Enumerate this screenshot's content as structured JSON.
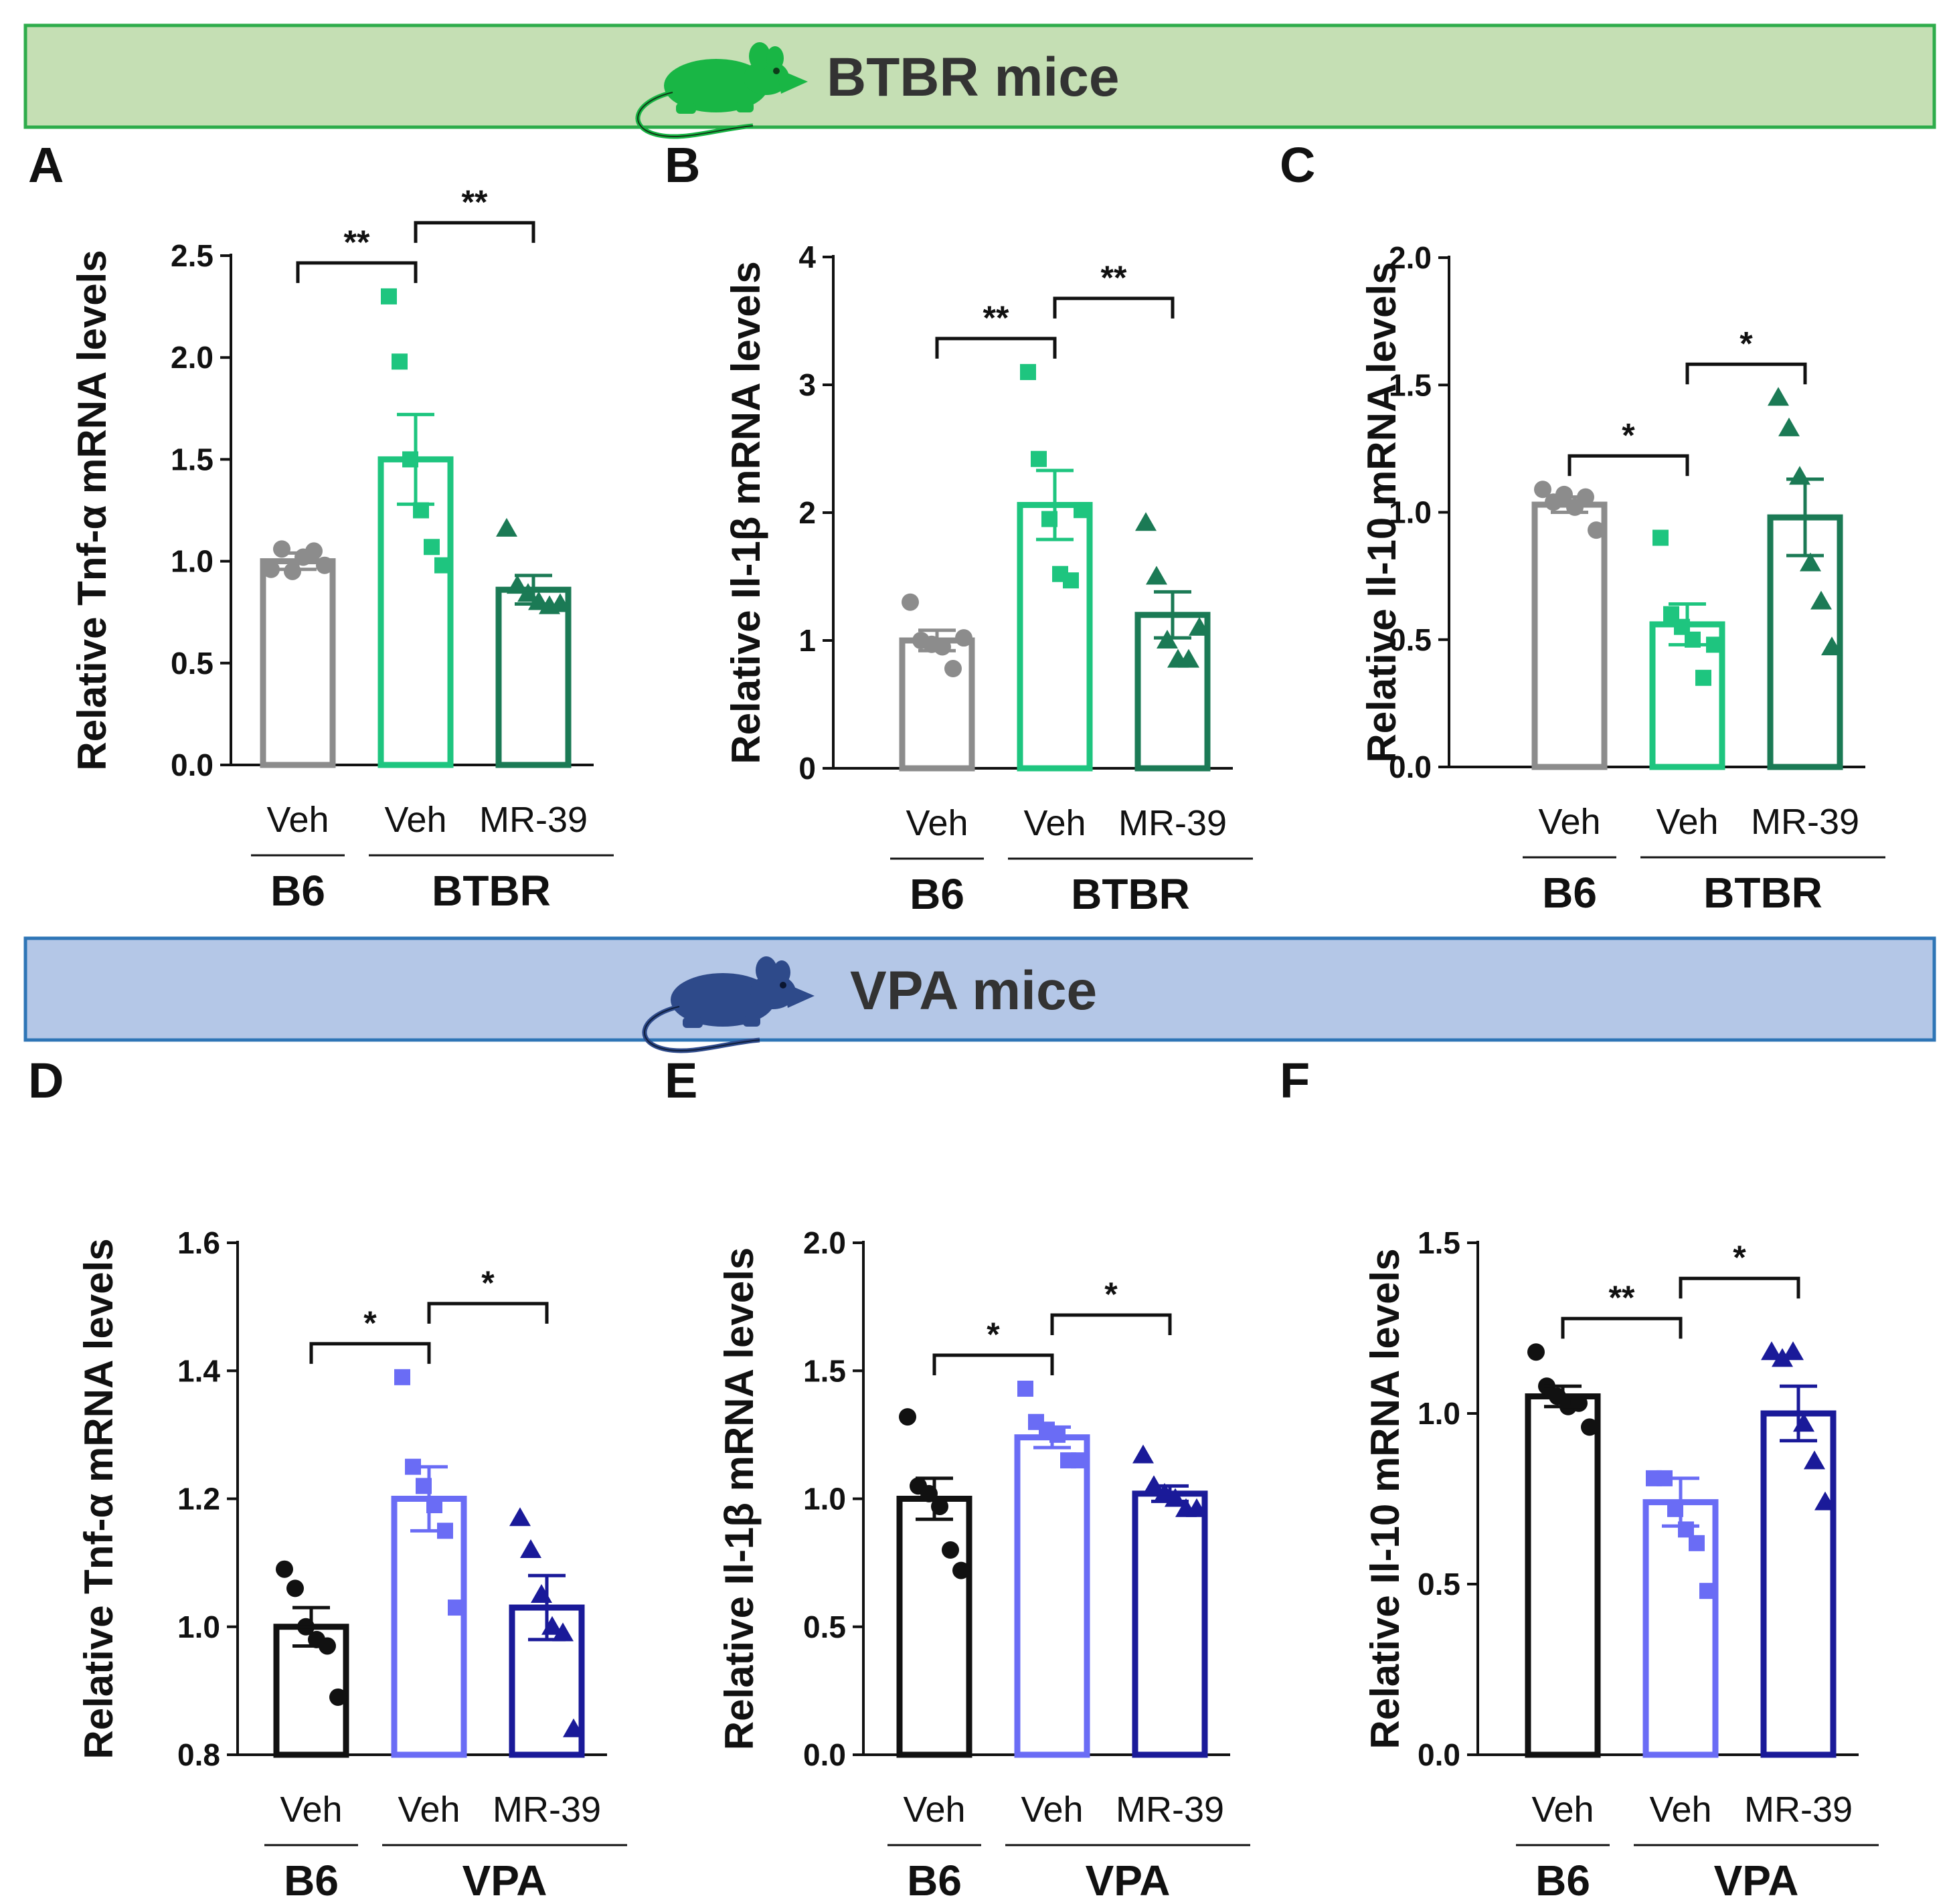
{
  "sections": [
    {
      "title": "BTBR mice",
      "fill": "#c5dfb4",
      "stroke": "#2eac4b",
      "mouse_color": "#19b645",
      "mouse_icon": "mouse-icon"
    },
    {
      "title": "VPA mice",
      "fill": "#b4c7e7",
      "stroke": "#2e75b6",
      "mouse_color": "#2e4a8a",
      "mouse_icon": "mouse-icon"
    }
  ],
  "chart_data": [
    {
      "panel": "A",
      "type": "bar",
      "section": 0,
      "ylabel": "Relative Tnf-α mRNA levels",
      "ylim": [
        0,
        2.5
      ],
      "yticks": [
        "0.0",
        "0.5",
        "1.0",
        "1.5",
        "2.0",
        "2.5"
      ],
      "categories": [
        "Veh",
        "Veh",
        "MR-39"
      ],
      "groups": [
        {
          "label": "B6",
          "bars": [
            0
          ]
        },
        {
          "label": "BTBR",
          "bars": [
            1,
            2
          ]
        }
      ],
      "colors": [
        "#8c8c8c",
        "#1ec57f",
        "#1b7a55"
      ],
      "markers": [
        "circle",
        "square",
        "triangle"
      ],
      "values": [
        1.0,
        1.5,
        0.86
      ],
      "sem": [
        0.04,
        0.22,
        0.07
      ],
      "points": [
        [
          0.96,
          1.06,
          0.95,
          1.02,
          1.05,
          0.98
        ],
        [
          2.3,
          1.98,
          1.5,
          1.25,
          1.07,
          0.98
        ],
        [
          1.16,
          0.88,
          0.84,
          0.8,
          0.78,
          0.79
        ]
      ],
      "comparisons": [
        {
          "from": 0,
          "to": 1,
          "label": "**"
        },
        {
          "from": 1,
          "to": 2,
          "label": "**"
        }
      ]
    },
    {
      "panel": "B",
      "type": "bar",
      "section": 0,
      "ylabel": "Relative Il-1β mRNA levels",
      "ylim": [
        0,
        4
      ],
      "yticks": [
        "0",
        "1",
        "2",
        "3",
        "4"
      ],
      "categories": [
        "Veh",
        "Veh",
        "MR-39"
      ],
      "groups": [
        {
          "label": "B6",
          "bars": [
            0
          ]
        },
        {
          "label": "BTBR",
          "bars": [
            1,
            2
          ]
        }
      ],
      "colors": [
        "#8c8c8c",
        "#1ec57f",
        "#1b7a55"
      ],
      "markers": [
        "circle",
        "square",
        "triangle"
      ],
      "values": [
        1.0,
        2.06,
        1.2
      ],
      "sem": [
        0.08,
        0.27,
        0.18
      ],
      "points": [
        [
          1.3,
          1.0,
          0.97,
          0.95,
          0.78,
          1.02
        ],
        [
          3.1,
          2.42,
          1.95,
          1.52,
          1.47,
          2.02
        ],
        [
          1.92,
          1.5,
          1.0,
          0.85,
          0.85,
          1.1
        ]
      ],
      "comparisons": [
        {
          "from": 0,
          "to": 1,
          "label": "**"
        },
        {
          "from": 1,
          "to": 2,
          "label": "**"
        }
      ]
    },
    {
      "panel": "C",
      "type": "bar",
      "section": 0,
      "ylabel": "Relative Il-10 mRNA levels",
      "ylim": [
        0,
        2.0
      ],
      "yticks": [
        "0.0",
        "0.5",
        "1.0",
        "1.5",
        "2.0"
      ],
      "categories": [
        "Veh",
        "Veh",
        "MR-39"
      ],
      "groups": [
        {
          "label": "B6",
          "bars": [
            0
          ]
        },
        {
          "label": "BTBR",
          "bars": [
            1,
            2
          ]
        }
      ],
      "colors": [
        "#8c8c8c",
        "#1ec57f",
        "#1b7a55"
      ],
      "markers": [
        "circle",
        "square",
        "triangle"
      ],
      "values": [
        1.03,
        0.56,
        0.98
      ],
      "sem": [
        0.03,
        0.08,
        0.15
      ],
      "points": [
        [
          1.09,
          1.04,
          1.07,
          1.02,
          1.06,
          0.93
        ],
        [
          0.9,
          0.6,
          0.55,
          0.5,
          0.35,
          0.48
        ],
        [
          1.45,
          1.33,
          1.14,
          0.8,
          0.65,
          0.47
        ]
      ],
      "comparisons": [
        {
          "from": 0,
          "to": 1,
          "label": "*"
        },
        {
          "from": 1,
          "to": 2,
          "label": "*"
        }
      ]
    },
    {
      "panel": "D",
      "type": "bar",
      "section": 1,
      "ylabel": "Relative Tnf-α mRNA levels",
      "ylim": [
        0.8,
        1.6
      ],
      "yticks": [
        "0.8",
        "1.0",
        "1.2",
        "1.4",
        "1.6"
      ],
      "categories": [
        "Veh",
        "Veh",
        "MR-39"
      ],
      "groups": [
        {
          "label": "B6",
          "bars": [
            0
          ]
        },
        {
          "label": "VPA",
          "bars": [
            1,
            2
          ]
        }
      ],
      "colors": [
        "#111111",
        "#6a6cf5",
        "#1a1a99"
      ],
      "markers": [
        "circle",
        "square",
        "triangle"
      ],
      "values": [
        1.0,
        1.2,
        1.03
      ],
      "sem": [
        0.03,
        0.05,
        0.05
      ],
      "points": [
        [
          1.09,
          1.06,
          1.0,
          0.98,
          0.97,
          0.89
        ],
        [
          1.39,
          1.25,
          1.22,
          1.19,
          1.15,
          1.03
        ],
        [
          1.17,
          1.12,
          1.05,
          1.0,
          0.99,
          0.84
        ]
      ],
      "comparisons": [
        {
          "from": 0,
          "to": 1,
          "label": "*"
        },
        {
          "from": 1,
          "to": 2,
          "label": "*"
        }
      ]
    },
    {
      "panel": "E",
      "type": "bar",
      "section": 1,
      "ylabel": "Relative Il-1β mRNA levels",
      "ylim": [
        0,
        2.0
      ],
      "yticks": [
        "0.0",
        "0.5",
        "1.0",
        "1.5",
        "2.0"
      ],
      "categories": [
        "Veh",
        "Veh",
        "MR-39"
      ],
      "groups": [
        {
          "label": "B6",
          "bars": [
            0
          ]
        },
        {
          "label": "VPA",
          "bars": [
            1,
            2
          ]
        }
      ],
      "colors": [
        "#111111",
        "#6a6cf5",
        "#1a1a99"
      ],
      "markers": [
        "circle",
        "square",
        "triangle"
      ],
      "values": [
        1.0,
        1.24,
        1.02
      ],
      "sem": [
        0.08,
        0.04,
        0.03
      ],
      "points": [
        [
          1.32,
          1.05,
          1.02,
          0.97,
          0.8,
          0.72
        ],
        [
          1.43,
          1.3,
          1.27,
          1.25,
          1.15,
          1.15
        ],
        [
          1.17,
          1.05,
          1.02,
          1.0,
          0.96,
          0.96
        ]
      ],
      "comparisons": [
        {
          "from": 0,
          "to": 1,
          "label": "*"
        },
        {
          "from": 1,
          "to": 2,
          "label": "*"
        }
      ]
    },
    {
      "panel": "F",
      "type": "bar",
      "section": 1,
      "ylabel": "Relative Il-10 mRNA levels",
      "ylim": [
        0,
        1.5
      ],
      "yticks": [
        "0.0",
        "0.5",
        "1.0",
        "1.5"
      ],
      "categories": [
        "Veh",
        "Veh",
        "MR-39"
      ],
      "groups": [
        {
          "label": "B6",
          "bars": [
            0
          ]
        },
        {
          "label": "VPA",
          "bars": [
            1,
            2
          ]
        }
      ],
      "colors": [
        "#111111",
        "#6a6cf5",
        "#1a1a99"
      ],
      "markers": [
        "circle",
        "square",
        "triangle"
      ],
      "values": [
        1.05,
        0.74,
        1.0
      ],
      "sem": [
        0.03,
        0.07,
        0.08
      ],
      "points": [
        [
          1.18,
          1.08,
          1.05,
          1.02,
          1.03,
          0.96
        ],
        [
          0.81,
          0.81,
          0.72,
          0.66,
          0.62,
          0.48
        ],
        [
          1.18,
          1.16,
          1.18,
          0.97,
          0.86,
          0.74
        ]
      ],
      "comparisons": [
        {
          "from": 0,
          "to": 1,
          "label": "**"
        },
        {
          "from": 1,
          "to": 2,
          "label": "*"
        }
      ]
    }
  ]
}
